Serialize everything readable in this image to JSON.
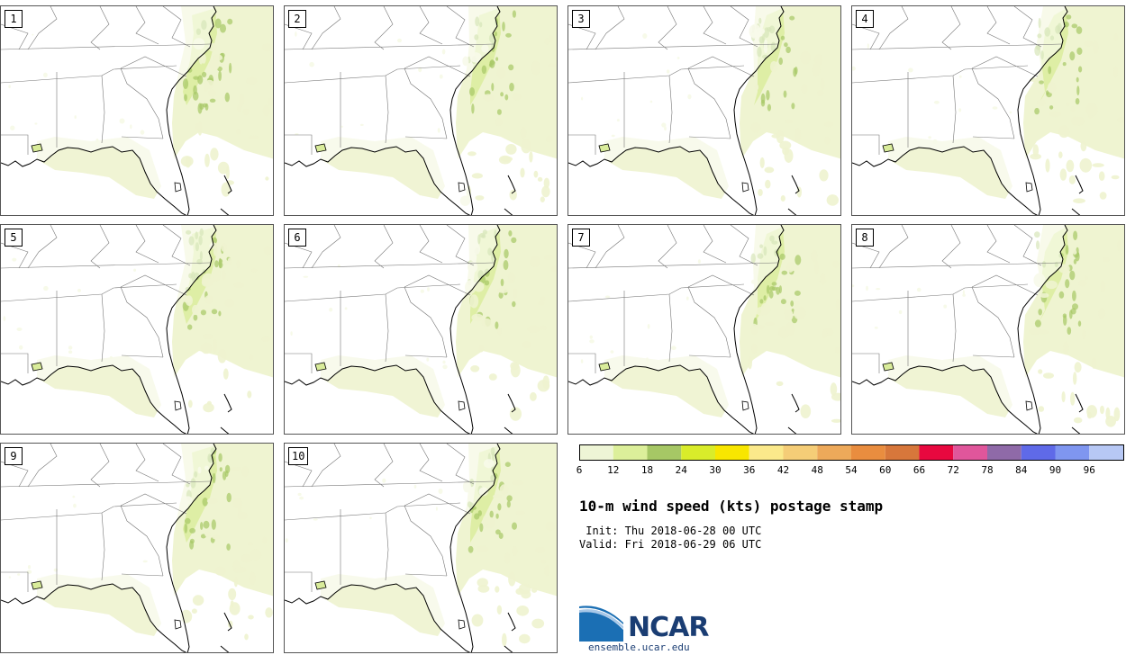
{
  "title": "10-m wind speed (kts) postage stamp",
  "init_label": "Init:",
  "init_time": "Thu 2018-06-28 00 UTC",
  "valid_label": "Valid:",
  "valid_time": "Fri 2018-06-29 06 UTC",
  "logo": {
    "name": "NCAR",
    "url": "ensemble.ucar.edu",
    "icon": "ncar-logo-icon"
  },
  "units": "kts",
  "members": [
    "1",
    "2",
    "3",
    "4",
    "5",
    "6",
    "7",
    "8",
    "9",
    "10"
  ],
  "colorbar": {
    "ticks": [
      "6",
      "12",
      "18",
      "24",
      "30",
      "36",
      "42",
      "48",
      "54",
      "60",
      "66",
      "72",
      "78",
      "84",
      "90",
      "96"
    ],
    "colors": [
      "#eef5d6",
      "#dcef9a",
      "#a6c765",
      "#d9ec2a",
      "#f8e600",
      "#fbe98b",
      "#f5cd77",
      "#eda95a",
      "#e98d3f",
      "#d7773b",
      "#e8083f",
      "#e0569b",
      "#8f6aa8",
      "#5f6ae8",
      "#7f96f0",
      "#b7c8f5"
    ]
  },
  "map_colors": {
    "light_wind": "#eef3cf",
    "mid_wind": "#d9ec9a",
    "strong_wind": "#a6c765",
    "boundary": "#000000",
    "state_lines": "#777777"
  }
}
